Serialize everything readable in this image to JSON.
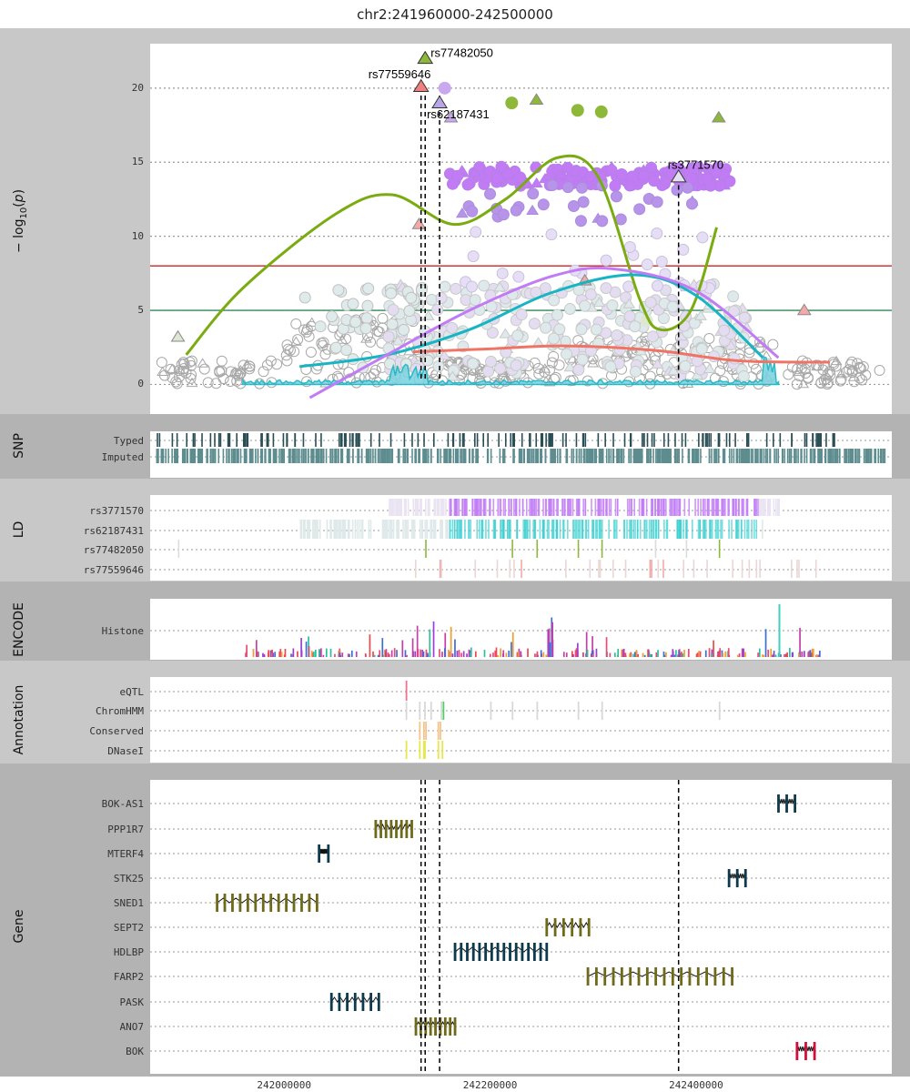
{
  "chart_data": {
    "type": "scatter",
    "title": "chr2:241960000-242500000",
    "x_range": [
      241870000,
      242590000
    ],
    "x_ticks": [
      242000000,
      242200000,
      242400000
    ],
    "x_tick_labels": [
      "242000000",
      "242200000",
      "242400000"
    ],
    "manhattan": {
      "ylabel": "-log10(p)",
      "ylim": [
        -2,
        23
      ],
      "y_ticks": [
        0,
        5,
        10,
        15,
        20
      ],
      "y_tick_labels": [
        "0",
        "5",
        "10",
        "15",
        "20"
      ],
      "thresholds": [
        {
          "value": 8,
          "color": "#cc2222"
        },
        {
          "value": 5,
          "color": "#2e8b57"
        }
      ],
      "lead_snps": [
        {
          "name": "rs77482050",
          "pos": 242137000,
          "p": 22.0,
          "color": "#8db83a"
        },
        {
          "name": "rs77559646",
          "pos": 242133000,
          "p": 20.1,
          "color": "#f08080"
        },
        {
          "name": "rs62187431",
          "pos": 242151000,
          "p": 19.0,
          "color": "#b9a6e8"
        },
        {
          "name": "rs3771570",
          "pos": 242383000,
          "p": 14.0,
          "color": "#e6e0f3"
        }
      ],
      "highlight_points": [
        {
          "pos": 242156000,
          "p": 20.0,
          "color": "#c9a8f0",
          "shape": "circle"
        },
        {
          "pos": 242162000,
          "p": 18.0,
          "color": "#c9a8f0",
          "shape": "triangle"
        },
        {
          "pos": 242221000,
          "p": 19.0,
          "color": "#8db83a",
          "shape": "circle"
        },
        {
          "pos": 242245000,
          "p": 19.2,
          "color": "#8db83a",
          "shape": "triangle"
        },
        {
          "pos": 242285000,
          "p": 18.5,
          "color": "#8db83a",
          "shape": "circle"
        },
        {
          "pos": 242308000,
          "p": 18.4,
          "color": "#8db83a",
          "shape": "circle"
        },
        {
          "pos": 242422000,
          "p": 18.0,
          "color": "#8db83a",
          "shape": "triangle"
        },
        {
          "pos": 242131000,
          "p": 10.8,
          "color": "#f4a9a8",
          "shape": "triangle"
        },
        {
          "pos": 242292000,
          "p": 7.0,
          "color": "#f4a9a8",
          "shape": "triangle"
        },
        {
          "pos": 242505000,
          "p": 5.0,
          "color": "#f4a9a8",
          "shape": "triangle"
        },
        {
          "pos": 241897000,
          "p": 3.2,
          "color": "#dfe6d2",
          "shape": "triangle"
        },
        {
          "pos": 242352000,
          "p": 4.3,
          "color": "#dfe6d2",
          "shape": "circle"
        }
      ],
      "smooth_curves": [
        {
          "name": "green",
          "color": "#7aab10",
          "x": [
            241905000,
            241960000,
            242050000,
            242105000,
            242165000,
            242215000,
            242265000,
            242305000,
            242345000,
            242365000,
            242395000,
            242420000
          ],
          "y": [
            2,
            6.5,
            11.5,
            12.8,
            10.8,
            12.5,
            15.3,
            14.0,
            5.8,
            3.7,
            5.0,
            10.6
          ]
        },
        {
          "name": "teal",
          "color": "#17b5c3",
          "x": [
            242015000,
            242100000,
            242180000,
            242260000,
            242340000,
            242400000,
            242465000
          ],
          "y": [
            1.2,
            2.0,
            3.7,
            6.2,
            7.4,
            6.0,
            1.8
          ]
        },
        {
          "name": "purple",
          "color": "#c17cf5",
          "x": [
            242025000,
            242100000,
            242180000,
            242260000,
            242320000,
            242400000,
            242480000
          ],
          "y": [
            -0.9,
            2.0,
            5.0,
            7.3,
            7.8,
            6.3,
            1.8
          ]
        },
        {
          "name": "salmon",
          "color": "#f07466",
          "x": [
            242125000,
            242200000,
            242270000,
            242360000,
            242440000,
            242530000
          ],
          "y": [
            2.2,
            2.4,
            2.6,
            2.3,
            1.6,
            1.5
          ]
        }
      ]
    },
    "snp_track": {
      "label": "SNP",
      "rows": [
        "Typed",
        "Imputed"
      ],
      "colors": {
        "Typed": "#2a4e55",
        "Imputed": "#5d8d8f"
      }
    },
    "ld_track": {
      "label": "LD",
      "rows": [
        "rs3771570",
        "rs62187431",
        "rs77482050",
        "rs77559646"
      ],
      "colors": {
        "rs3771570": "#c17cf5",
        "rs62187431": "#3ccfd0",
        "rs77482050": "#8db83a",
        "rs77559646": "#f4a9a8"
      }
    },
    "encode_track": {
      "label": "ENCODE",
      "rows": [
        "Histone"
      ]
    },
    "annotation_track": {
      "label": "Annotation",
      "rows": [
        "eQTL",
        "ChromHMM",
        "Conserved",
        "DNaseI"
      ]
    },
    "gene_track": {
      "label": "Gene",
      "genes": [
        {
          "name": "BOK-AS1",
          "start": 242480000,
          "end": 242496000,
          "color": "#0d3a4d",
          "blocks": 3
        },
        {
          "name": "PPP1R7",
          "start": 242089000,
          "end": 242124000,
          "color": "#6f6a19",
          "blocks": 8
        },
        {
          "name": "MTERF4",
          "start": 242034000,
          "end": 242043000,
          "color": "#0d3a4d",
          "blocks": 2
        },
        {
          "name": "STK25",
          "start": 242432000,
          "end": 242448000,
          "color": "#0d3a4d",
          "blocks": 3
        },
        {
          "name": "SNED1",
          "start": 241935000,
          "end": 242032000,
          "color": "#6f6a19",
          "blocks": 14
        },
        {
          "name": "SEPT2",
          "start": 242255000,
          "end": 242296000,
          "color": "#6f6a19",
          "blocks": 6
        },
        {
          "name": "HDLBP",
          "start": 242166000,
          "end": 242255000,
          "color": "#0d3a4d",
          "blocks": 16
        },
        {
          "name": "FARP2",
          "start": 242295000,
          "end": 242435000,
          "color": "#6f6a19",
          "blocks": 18
        },
        {
          "name": "PASK",
          "start": 242046000,
          "end": 242092000,
          "color": "#0d3a4d",
          "blocks": 7
        },
        {
          "name": "ANO7",
          "start": 242128000,
          "end": 242166000,
          "color": "#6f6a19",
          "blocks": 9
        },
        {
          "name": "BOK",
          "start": 242498000,
          "end": 242515000,
          "color": "#d0103a",
          "blocks": 3
        }
      ]
    },
    "vertical_markers": [
      242133000,
      242137000,
      242151000,
      242383000
    ]
  }
}
